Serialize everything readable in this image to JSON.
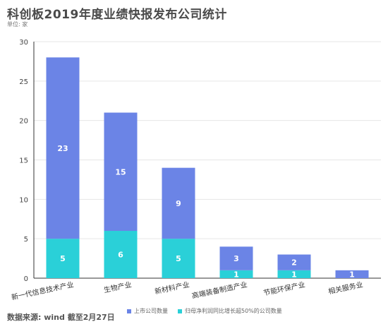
{
  "title": "科创板2019年度业绩快报发布公司统计",
  "unit_label": "单位: 家",
  "source": "数据来源: wind 截至2月27日",
  "colors": {
    "total": "#6b84e6",
    "growth": "#2ad0d8",
    "grid": "#e6e6e6",
    "axis": "#333333"
  },
  "chart_data": {
    "type": "bar",
    "stacked": true,
    "categories": [
      "新一代信息技术产业",
      "生物产业",
      "新材料产业",
      "高端装备制造产业",
      "节能环保产业",
      "相关服务业"
    ],
    "series": [
      {
        "name": "归母净利润同比增长超50%的公司数量",
        "values": [
          5,
          6,
          5,
          1,
          1,
          0
        ],
        "color": "#2ad0d8"
      },
      {
        "name": "上市公司数量",
        "values": [
          23,
          15,
          9,
          3,
          2,
          1
        ],
        "color": "#6b84e6"
      }
    ],
    "ylim": [
      0,
      30
    ],
    "yticks": [
      0,
      5,
      10,
      15,
      20,
      25,
      30
    ],
    "grid": true,
    "legend_position": "bottom",
    "xlabel": "",
    "ylabel": ""
  },
  "legend": [
    {
      "label": "上市公司数量",
      "color": "#6b84e6"
    },
    {
      "label": "归母净利润同比增长超50%的公司数量",
      "color": "#2ad0d8"
    }
  ]
}
